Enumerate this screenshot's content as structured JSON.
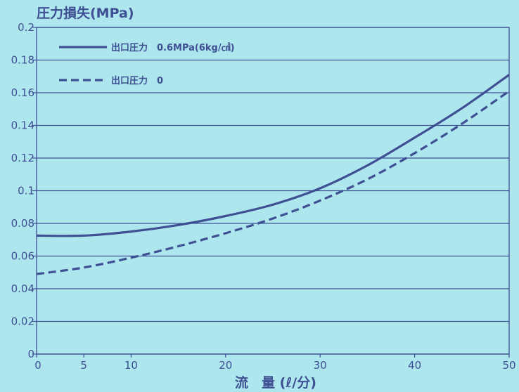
{
  "chart_data": {
    "type": "line",
    "title": "圧力損失(MPa)",
    "xlabel": "流　量 (ℓ/分)",
    "ylabel": "",
    "xlim": [
      0,
      50
    ],
    "ylim": [
      0,
      0.2
    ],
    "x_ticks": [
      "0",
      "5",
      "10",
      "20",
      "30",
      "40",
      "50"
    ],
    "x_tick_values": [
      0,
      5,
      10,
      20,
      30,
      40,
      50
    ],
    "y_ticks": [
      "0",
      "0.02",
      "0.04",
      "0.06",
      "0.08",
      "0.1",
      "0.12",
      "0.14",
      "0.16",
      "0.18",
      "0.2"
    ],
    "y_tick_values": [
      0,
      0.02,
      0.04,
      0.06,
      0.08,
      0.1,
      0.12,
      0.14,
      0.16,
      0.18,
      0.2
    ],
    "grid": "horizontal",
    "legend_position": "top-left",
    "colors": {
      "line": "#3e4f93",
      "grid": "#3e4f93",
      "background": "#aee6ee"
    },
    "series": [
      {
        "name": "出口圧力　0.6MPa(6kg/㎠)",
        "style": "solid",
        "x": [
          0,
          5,
          10,
          15,
          20,
          25,
          30,
          35,
          40,
          45,
          50
        ],
        "values": [
          0.0725,
          0.0725,
          0.075,
          0.079,
          0.0845,
          0.0915,
          0.1015,
          0.1155,
          0.1325,
          0.1505,
          0.171
        ]
      },
      {
        "name": "出口圧力　0",
        "style": "dashed",
        "x": [
          0,
          5,
          10,
          15,
          20,
          25,
          30,
          35,
          40,
          45,
          50
        ],
        "values": [
          0.049,
          0.053,
          0.059,
          0.066,
          0.074,
          0.083,
          0.094,
          0.107,
          0.123,
          0.141,
          0.161
        ]
      }
    ]
  }
}
